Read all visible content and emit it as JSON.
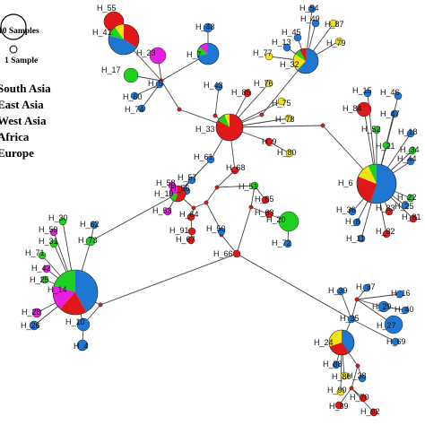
{
  "colors": {
    "south_asia": "#1f77d4",
    "east_asia": "#e01818",
    "west_asia": "#f2e310",
    "africa": "#1fd11f",
    "europe": "#e81ee0",
    "median": "#cc1b1b",
    "edge": "#444444"
  },
  "legend": {
    "size_large": "10 Samples",
    "size_small": "1 Sample",
    "regions": [
      {
        "label": "South Asia",
        "color": "#1f77d4"
      },
      {
        "label": "East Asia",
        "color": "#e01818"
      },
      {
        "label": "West Asia",
        "color": "#f2e310"
      },
      {
        "label": "Africa",
        "color": "#1fd11f"
      },
      {
        "label": "Europe",
        "color": "#e81ee0"
      }
    ]
  },
  "haplotypes": [
    {
      "id": "H_55",
      "label": "H_55"
    },
    {
      "id": "H_41",
      "label": "H_41"
    },
    {
      "id": "H_23",
      "label": "H_23"
    },
    {
      "id": "H_7",
      "label": "H_7"
    },
    {
      "id": "H_48",
      "label": "H_48"
    },
    {
      "id": "H_17",
      "label": "H_17"
    },
    {
      "id": "H_5",
      "label": "H_5"
    },
    {
      "id": "H_60",
      "label": "H_60"
    },
    {
      "id": "H_74",
      "label": "H_74"
    },
    {
      "id": "H_43",
      "label": "H_43"
    },
    {
      "id": "H_85",
      "label": "H_85"
    },
    {
      "id": "H_54",
      "label": "H_54"
    },
    {
      "id": "H_49",
      "label": "H_49"
    },
    {
      "id": "H_87",
      "label": "H_87"
    },
    {
      "id": "H_45",
      "label": "H_45"
    },
    {
      "id": "H_13",
      "label": "H_13"
    },
    {
      "id": "H_79",
      "label": "H_79"
    },
    {
      "id": "H_77",
      "label": "H_77"
    },
    {
      "id": "H_32",
      "label": "H_32"
    },
    {
      "id": "H_76",
      "label": "H_76"
    },
    {
      "id": "H_75",
      "label": "H_75"
    },
    {
      "id": "H_78",
      "label": "H_78"
    },
    {
      "id": "H_33",
      "label": "H_33"
    },
    {
      "id": "H_9",
      "label": "H_9"
    },
    {
      "id": "H_80",
      "label": "H_80"
    },
    {
      "id": "H_15",
      "label": "H_15"
    },
    {
      "id": "H_46",
      "label": "H_46"
    },
    {
      "id": "H_84",
      "label": "H_84"
    },
    {
      "id": "H_47",
      "label": "H_47"
    },
    {
      "id": "H_52",
      "label": "H_52"
    },
    {
      "id": "H_18",
      "label": "H_18"
    },
    {
      "id": "H_21",
      "label": "H_21"
    },
    {
      "id": "H_34",
      "label": "H_34"
    },
    {
      "id": "H_44",
      "label": "H_44"
    },
    {
      "id": "H_6",
      "label": "H_6"
    },
    {
      "id": "H_22",
      "label": "H_22"
    },
    {
      "id": "H_25b",
      "label": "H_25"
    },
    {
      "id": "H_36",
      "label": "H_36"
    },
    {
      "id": "H_83",
      "label": "H_83"
    },
    {
      "id": "H_81",
      "label": "H_81"
    },
    {
      "id": "H_8",
      "label": "H_8"
    },
    {
      "id": "H_82",
      "label": "H_82"
    },
    {
      "id": "H_11",
      "label": "H_11"
    },
    {
      "id": "H_61",
      "label": "H_61"
    },
    {
      "id": "H_68",
      "label": "H_68"
    },
    {
      "id": "H_57",
      "label": "H_57"
    },
    {
      "id": "H_56",
      "label": "H_56"
    },
    {
      "id": "H_58",
      "label": "H_58"
    },
    {
      "id": "H_19",
      "label": "H_19"
    },
    {
      "id": "H_51",
      "label": "H_51"
    },
    {
      "id": "H_65",
      "label": "H_65"
    },
    {
      "id": "H_53",
      "label": "H_53"
    },
    {
      "id": "H_64",
      "label": "H_64"
    },
    {
      "id": "H_63",
      "label": "H_63"
    },
    {
      "id": "H_20",
      "label": "H_20"
    },
    {
      "id": "H_91",
      "label": "H_91"
    },
    {
      "id": "H_67",
      "label": "H_67"
    },
    {
      "id": "H_50",
      "label": "H_50"
    },
    {
      "id": "H_72",
      "label": "H_72"
    },
    {
      "id": "H_66",
      "label": "H_66"
    },
    {
      "id": "H_30",
      "label": "H_30"
    },
    {
      "id": "H_62",
      "label": "H_62"
    },
    {
      "id": "H_59",
      "label": "H_59"
    },
    {
      "id": "H_73",
      "label": "H_73"
    },
    {
      "id": "H_31",
      "label": "H_31"
    },
    {
      "id": "H_71",
      "label": "H_71"
    },
    {
      "id": "H_42",
      "label": "H_42"
    },
    {
      "id": "H_25",
      "label": "H_25"
    },
    {
      "id": "H_14",
      "label": "H_14"
    },
    {
      "id": "H_28",
      "label": "H_28"
    },
    {
      "id": "H_26",
      "label": "H_26"
    },
    {
      "id": "H_10",
      "label": "H_10"
    },
    {
      "id": "H_4",
      "label": "H_4"
    },
    {
      "id": "H_39",
      "label": "H_39"
    },
    {
      "id": "H_37",
      "label": "H_37"
    },
    {
      "id": "H_16",
      "label": "H_16"
    },
    {
      "id": "H_29",
      "label": "H_29"
    },
    {
      "id": "H_40",
      "label": "H_40"
    },
    {
      "id": "H_35",
      "label": "H_35"
    },
    {
      "id": "H_27",
      "label": "H_27"
    },
    {
      "id": "H_24",
      "label": "H_24"
    },
    {
      "id": "H_69",
      "label": "H_69"
    },
    {
      "id": "H_88",
      "label": "H_88"
    },
    {
      "id": "H_86",
      "label": "H_86"
    },
    {
      "id": "H_38",
      "label": "H_38"
    },
    {
      "id": "H_90",
      "label": "H_90"
    },
    {
      "id": "H_70",
      "label": "H_70"
    },
    {
      "id": "H_89",
      "label": "H_89"
    },
    {
      "id": "H_92",
      "label": "H_92"
    }
  ]
}
